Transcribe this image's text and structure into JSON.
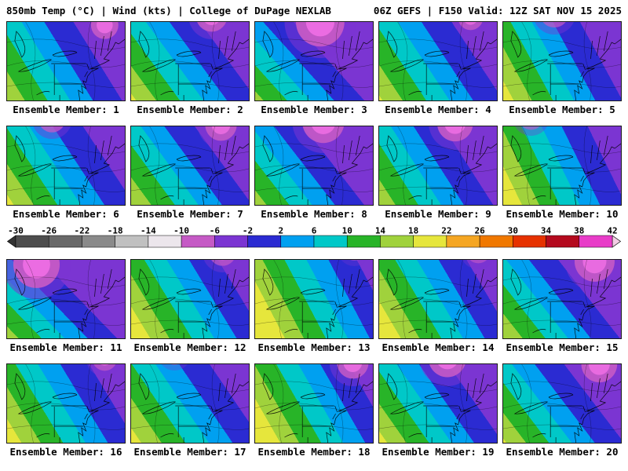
{
  "header": {
    "left": "850mb Temp (°C) | Wind (kts) | College of DuPage NEXLAB",
    "right": "06Z GEFS | F150 Valid: 12Z SAT NOV 15 2025"
  },
  "panels": {
    "captions": [
      "Ensemble Member: 1",
      "Ensemble Member: 2",
      "Ensemble Member: 3",
      "Ensemble Member: 4",
      "Ensemble Member: 5",
      "Ensemble Member: 6",
      "Ensemble Member: 7",
      "Ensemble Member: 8",
      "Ensemble Member: 9",
      "Ensemble Member: 10",
      "Ensemble Member: 11",
      "Ensemble Member: 12",
      "Ensemble Member: 13",
      "Ensemble Member: 14",
      "Ensemble Member: 15",
      "Ensemble Member: 16",
      "Ensemble Member: 17",
      "Ensemble Member: 18",
      "Ensemble Member: 19",
      "Ensemble Member: 20"
    ]
  },
  "colorbar": {
    "ticks": [
      "-30",
      "-26",
      "-22",
      "-18",
      "-14",
      "-10",
      "-6",
      "-2",
      "2",
      "6",
      "10",
      "14",
      "18",
      "22",
      "26",
      "30",
      "34",
      "38",
      "42"
    ],
    "segment_colors": [
      "#4d4d4d",
      "#696969",
      "#8a8a8a",
      "#c0c0c0",
      "#ece6ec",
      "#c55ac5",
      "#7b35d2",
      "#2b2bd2",
      "#00a0f0",
      "#00c8c8",
      "#28b428",
      "#a0d23c",
      "#e6e63c",
      "#f5a623",
      "#f07800",
      "#e63200",
      "#b40a1e",
      "#e83cc8"
    ],
    "below_range_color": "#333333",
    "above_range_color": "#f2cce4"
  }
}
